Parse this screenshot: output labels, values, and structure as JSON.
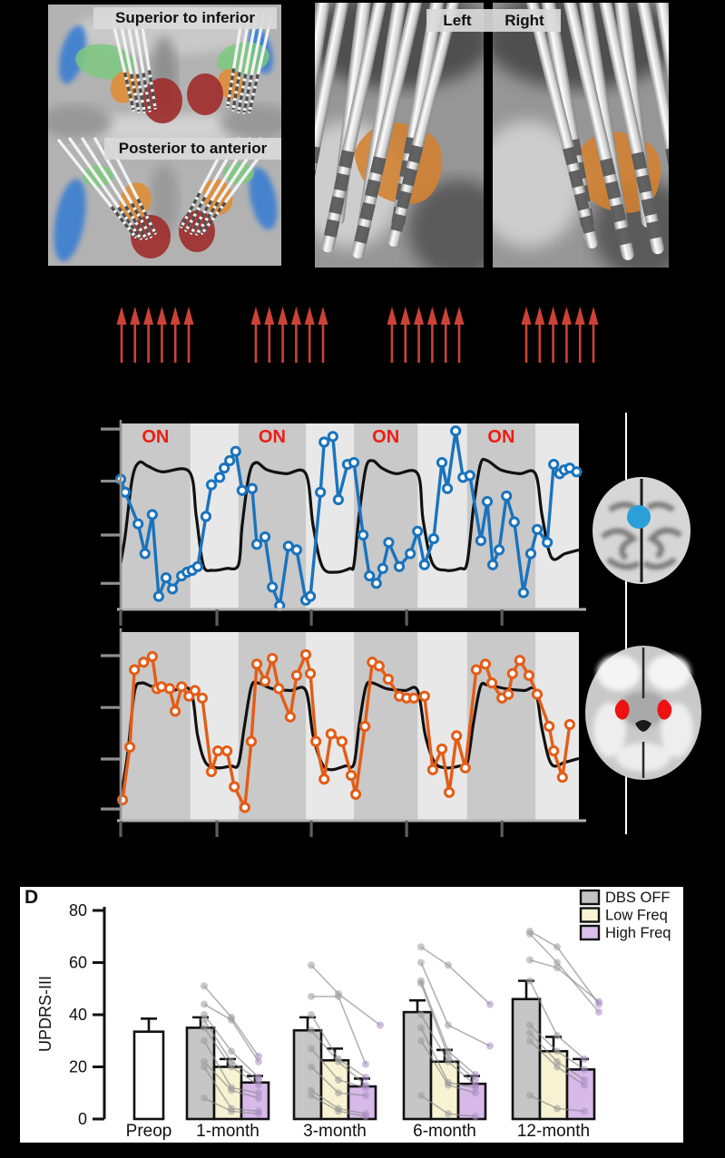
{
  "panel_a": {
    "label_top": "Superior to inferior",
    "label_bottom": "Posterior to anterior",
    "colors": {
      "blue": "#3a7ed2",
      "green": "#7cc87f",
      "orange": "#dd8f3d",
      "red": "#9e2f2c"
    }
  },
  "panel_b": {
    "label_left": "Left",
    "label_right": "Right",
    "stn_color": "#d4812f"
  },
  "stimulus": {
    "color": "#cc4237",
    "arrows_per_group": 6,
    "groups_x": [
      130,
      278,
      428,
      576
    ],
    "group_width": 82
  },
  "right_column": {
    "seed_dot_color": "#2a9fd8",
    "roi_color": "#ee1111"
  },
  "panel_d": {
    "letter": "D"
  },
  "chart_data": [
    {
      "id": "bold-upper",
      "type": "line",
      "title": "",
      "xlabel": "",
      "ylabel": "",
      "on_label": "ON",
      "on_color": "#ee1d16",
      "line_color": "#1a73bd",
      "wave_color": "#111111",
      "band_dark": "#c9c9c9",
      "band_light": "#e8e8e8",
      "bands_dark_pct": [
        [
          0,
          15.2
        ],
        [
          25.7,
          40.4
        ],
        [
          50.9,
          64.8
        ],
        [
          75.6,
          90.5
        ]
      ],
      "x_ticks_pct": [
        0,
        21,
        41.6,
        62.4,
        83.2
      ],
      "y_ticks_pct": [
        3,
        31,
        60,
        86
      ],
      "series": [
        [
          0,
          70
        ],
        [
          1,
          63
        ],
        [
          3.8,
          46
        ],
        [
          5.3,
          30
        ],
        [
          6.9,
          51
        ],
        [
          8.3,
          7
        ],
        [
          9.9,
          17
        ],
        [
          11.3,
          11
        ],
        [
          13.3,
          18
        ],
        [
          14.5,
          20
        ],
        [
          15.6,
          21
        ],
        [
          16.8,
          23
        ],
        [
          18.6,
          50
        ],
        [
          19.8,
          67
        ],
        [
          21.6,
          71
        ],
        [
          22.6,
          76
        ],
        [
          23.8,
          80
        ],
        [
          25.1,
          85
        ],
        [
          26.5,
          64
        ],
        [
          28.7,
          65
        ],
        [
          29.7,
          35
        ],
        [
          31.5,
          39
        ],
        [
          33.1,
          12
        ],
        [
          34.7,
          2
        ],
        [
          36.6,
          34
        ],
        [
          38.4,
          32
        ],
        [
          40.4,
          5
        ],
        [
          41.4,
          7
        ],
        [
          43.6,
          63
        ],
        [
          44.4,
          90
        ],
        [
          46.3,
          93
        ],
        [
          47.5,
          59
        ],
        [
          49.5,
          78
        ],
        [
          50.9,
          79
        ],
        [
          52.9,
          40
        ],
        [
          54.3,
          18
        ],
        [
          55.8,
          14
        ],
        [
          57.2,
          22
        ],
        [
          58.5,
          36
        ],
        [
          60.8,
          23
        ],
        [
          63.2,
          30
        ],
        [
          64.8,
          42
        ],
        [
          66.3,
          24
        ],
        [
          68.3,
          38
        ],
        [
          70.1,
          79
        ],
        [
          71.3,
          65
        ],
        [
          73.1,
          96
        ],
        [
          74.7,
          71
        ],
        [
          76.2,
          72
        ],
        [
          78.6,
          37
        ],
        [
          80,
          58
        ],
        [
          81.2,
          24
        ],
        [
          82.6,
          32
        ],
        [
          84.2,
          61
        ],
        [
          85.9,
          47
        ],
        [
          87.9,
          9
        ],
        [
          89.5,
          30
        ],
        [
          90.9,
          43
        ],
        [
          93.1,
          36
        ],
        [
          94.5,
          78
        ],
        [
          95.8,
          73
        ],
        [
          96.8,
          75
        ],
        [
          98,
          76
        ],
        [
          99.5,
          74
        ]
      ],
      "wave": [
        [
          0,
          25
        ],
        [
          1,
          40
        ],
        [
          2.5,
          70
        ],
        [
          4,
          79
        ],
        [
          6,
          77
        ],
        [
          9,
          74
        ],
        [
          15,
          74
        ],
        [
          16.5,
          50
        ],
        [
          18,
          24
        ],
        [
          20,
          21
        ],
        [
          23,
          22
        ],
        [
          25.7,
          24
        ],
        [
          26.5,
          45
        ],
        [
          28,
          72
        ],
        [
          29.5,
          79
        ],
        [
          32,
          75
        ],
        [
          36,
          73
        ],
        [
          40.4,
          73
        ],
        [
          42,
          45
        ],
        [
          44,
          23
        ],
        [
          47,
          20
        ],
        [
          50,
          22
        ],
        [
          50.9,
          24
        ],
        [
          52,
          50
        ],
        [
          53.5,
          76
        ],
        [
          55,
          80
        ],
        [
          57,
          76
        ],
        [
          60,
          73
        ],
        [
          64.8,
          73
        ],
        [
          66,
          48
        ],
        [
          68,
          25
        ],
        [
          71,
          21
        ],
        [
          74,
          22
        ],
        [
          75.6,
          25
        ],
        [
          77,
          55
        ],
        [
          78.5,
          78
        ],
        [
          80,
          80
        ],
        [
          83,
          75
        ],
        [
          87,
          73
        ],
        [
          90.5,
          73
        ],
        [
          92,
          50
        ],
        [
          94,
          28
        ],
        [
          97,
          30
        ],
        [
          100,
          32
        ]
      ]
    },
    {
      "id": "bold-lower",
      "type": "line",
      "title": "",
      "xlabel": "",
      "ylabel": "",
      "on_label": "",
      "on_color": "#ee1d16",
      "line_color": "#e35d17",
      "wave_color": "#111111",
      "band_dark": "#c9c9c9",
      "band_light": "#e8e8e8",
      "bands_dark_pct": [
        [
          0,
          15.2
        ],
        [
          25.7,
          40.4
        ],
        [
          50.9,
          64.8
        ],
        [
          75.6,
          90.5
        ]
      ],
      "x_ticks_pct": [
        0,
        21,
        41.6,
        62.4,
        83.2
      ],
      "y_ticks_pct": [
        12.5,
        40,
        67.3,
        93.8
      ],
      "series": [
        [
          0.4,
          11
        ],
        [
          2,
          39
        ],
        [
          3,
          80
        ],
        [
          5,
          84
        ],
        [
          6.9,
          87
        ],
        [
          7.9,
          70
        ],
        [
          8.9,
          71
        ],
        [
          10.7,
          70
        ],
        [
          11.9,
          58
        ],
        [
          13.3,
          71
        ],
        [
          14.9,
          66
        ],
        [
          16.2,
          69
        ],
        [
          17.8,
          65
        ],
        [
          19.8,
          26
        ],
        [
          21.2,
          37
        ],
        [
          23.2,
          37
        ],
        [
          24.8,
          18
        ],
        [
          27.1,
          7
        ],
        [
          28.5,
          42
        ],
        [
          29.7,
          83
        ],
        [
          31.5,
          74
        ],
        [
          33.1,
          86
        ],
        [
          34.5,
          70
        ],
        [
          37,
          55
        ],
        [
          38.4,
          77
        ],
        [
          40.4,
          88
        ],
        [
          41.4,
          78
        ],
        [
          42.6,
          42
        ],
        [
          44.4,
          22
        ],
        [
          45.9,
          46
        ],
        [
          48.3,
          42
        ],
        [
          50.3,
          24
        ],
        [
          51.3,
          14
        ],
        [
          53.3,
          50
        ],
        [
          54.9,
          84
        ],
        [
          56.4,
          82
        ],
        [
          58.4,
          75
        ],
        [
          60.8,
          66
        ],
        [
          62.4,
          65
        ],
        [
          64,
          65
        ],
        [
          66.3,
          66
        ],
        [
          68.1,
          27
        ],
        [
          70.1,
          38
        ],
        [
          71.7,
          15
        ],
        [
          73.3,
          45
        ],
        [
          75.2,
          28
        ],
        [
          77.6,
          80
        ],
        [
          79.6,
          83
        ],
        [
          81,
          73
        ],
        [
          83.2,
          65
        ],
        [
          84.6,
          67
        ],
        [
          85.5,
          78
        ],
        [
          87.1,
          85
        ],
        [
          89.1,
          77
        ],
        [
          90.9,
          67
        ],
        [
          93.5,
          50
        ],
        [
          94.5,
          37
        ],
        [
          96.4,
          23
        ],
        [
          98,
          51
        ]
      ],
      "wave": [
        [
          0,
          12
        ],
        [
          1.5,
          35
        ],
        [
          3,
          68
        ],
        [
          4.5,
          73
        ],
        [
          7,
          71
        ],
        [
          11,
          69
        ],
        [
          15.2,
          69
        ],
        [
          16.8,
          45
        ],
        [
          18.5,
          31
        ],
        [
          21,
          28
        ],
        [
          24,
          29
        ],
        [
          25.7,
          30
        ],
        [
          27,
          50
        ],
        [
          28.5,
          71
        ],
        [
          30,
          73
        ],
        [
          33,
          70
        ],
        [
          37,
          69
        ],
        [
          40.4,
          69
        ],
        [
          42,
          45
        ],
        [
          44,
          30
        ],
        [
          46,
          27
        ],
        [
          49,
          29
        ],
        [
          50.9,
          30
        ],
        [
          52,
          50
        ],
        [
          53.5,
          71
        ],
        [
          55,
          73
        ],
        [
          58,
          70
        ],
        [
          62,
          69
        ],
        [
          64.8,
          69
        ],
        [
          66.5,
          45
        ],
        [
          68.5,
          31
        ],
        [
          71,
          28
        ],
        [
          74,
          29
        ],
        [
          75.6,
          30
        ],
        [
          77,
          52
        ],
        [
          78.5,
          71
        ],
        [
          80,
          72
        ],
        [
          84,
          70
        ],
        [
          88,
          69
        ],
        [
          90.5,
          69
        ],
        [
          92,
          48
        ],
        [
          94,
          30
        ],
        [
          97,
          31
        ],
        [
          100,
          33
        ]
      ]
    },
    {
      "id": "updrs",
      "type": "bar",
      "title": "",
      "xlabel": "",
      "ylabel": "UPDRS-III",
      "ylim": [
        0,
        80
      ],
      "yticks": [
        0,
        20,
        40,
        60,
        80
      ],
      "categories": [
        "Preop",
        "1-month",
        "3-month",
        "6-month",
        "12-month"
      ],
      "legend": [
        {
          "label": "DBS OFF",
          "color": "#c3c3c3"
        },
        {
          "label": "Low Freq",
          "color": "#f8f4d2"
        },
        {
          "label": "High Freq",
          "color": "#d9bfec"
        }
      ],
      "preop": {
        "value": 33.5,
        "err": 5,
        "color": "#ffffff"
      },
      "series_colors": [
        "#c6c6c6",
        "#f7f3d2",
        "#d7b9ea"
      ],
      "groups": [
        {
          "label": "1-month",
          "values": [
            35,
            20,
            14
          ],
          "errors": [
            4,
            3,
            2.5
          ]
        },
        {
          "label": "3-month",
          "values": [
            34,
            22.5,
            12.5
          ],
          "errors": [
            5,
            4.5,
            3
          ]
        },
        {
          "label": "6-month",
          "values": [
            41,
            22,
            13.5
          ],
          "errors": [
            4.5,
            4.5,
            3
          ]
        },
        {
          "label": "12-month",
          "values": [
            46,
            26,
            19
          ],
          "errors": [
            7,
            5.5,
            4
          ]
        }
      ],
      "subjects": {
        "1-month": [
          [
            51,
            39,
            24
          ],
          [
            44,
            38,
            22
          ],
          [
            40,
            26,
            16
          ],
          [
            38,
            22,
            15
          ],
          [
            35,
            20,
            13
          ],
          [
            30,
            12,
            10
          ],
          [
            22,
            11,
            8
          ],
          [
            20,
            4,
            3
          ],
          [
            8,
            3,
            2
          ]
        ],
        "3-month": [
          [
            59,
            48,
            36
          ],
          [
            47,
            47,
            21
          ],
          [
            40,
            23,
            16
          ],
          [
            34,
            22,
            13
          ],
          [
            27,
            15,
            12
          ],
          [
            20,
            10,
            9
          ],
          [
            11,
            4,
            2
          ],
          [
            9,
            3,
            1
          ]
        ],
        "6-month": [
          [
            66,
            59,
            44
          ],
          [
            60,
            36,
            28
          ],
          [
            53,
            26,
            17
          ],
          [
            52,
            24,
            15
          ],
          [
            40,
            22,
            13
          ],
          [
            35,
            14,
            12
          ],
          [
            30,
            13,
            10
          ],
          [
            9,
            2,
            1
          ]
        ],
        "12-month": [
          [
            72,
            66,
            44
          ],
          [
            71,
            60,
            41
          ],
          [
            61,
            58,
            45
          ],
          [
            53,
            32,
            23
          ],
          [
            36,
            26,
            19
          ],
          [
            33,
            22,
            15
          ],
          [
            30,
            20,
            13
          ],
          [
            9,
            4,
            3
          ]
        ]
      }
    }
  ]
}
